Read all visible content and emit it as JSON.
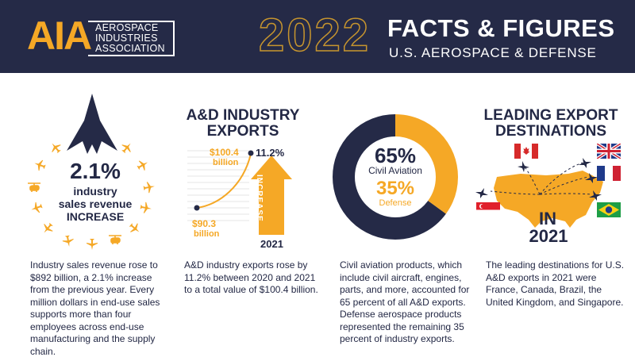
{
  "header": {
    "logo_mark": "AIA",
    "logo_lines": [
      "AEROSPACE",
      "INDUSTRIES",
      "ASSOCIATION"
    ],
    "year": "2022",
    "title": "FACTS & FIGURES",
    "subtitle": "U.S. AEROSPACE & DEFENSE"
  },
  "sales": {
    "percent": "2.1%",
    "line1": "industry",
    "line2": "sales revenue",
    "line3": "INCREASE",
    "paragraph": "Industry sales revenue rose to $892 billion, a 2.1% increase from the previous year. Every million dollars in end-use sales supports more than four employees across end-use manufacturing and the supply chain.",
    "icons": [
      "jet-silhouette",
      "airplane-icons-ring"
    ]
  },
  "exports": {
    "title_line1": "A&D INDUSTRY",
    "title_line2": "EXPORTS",
    "growth_label": "11.2%",
    "arrow_word": "INCREASE",
    "end_value": "$100.4",
    "end_unit": "billion",
    "start_value": "$90.3",
    "start_unit": "billion",
    "year": "2021",
    "paragraph": "A&D industry exports rose by 11.2% between 2020 and 2021 to a total value of $100.4 billion."
  },
  "composition": {
    "civil_percent": "65%",
    "civil_label": "Civil Aviation",
    "defense_percent": "35%",
    "defense_label": "Defense",
    "civil_share": 65,
    "defense_share": 35,
    "colors": {
      "civil": "#252a47",
      "defense": "#f5a826"
    },
    "paragraph": "Civil aviation products, which include civil aircraft, engines, parts, and more, accounted for 65 percent of all A&D exports. Defense aerospace products represented the remaining 35 percent of industry exports."
  },
  "destinations": {
    "title_line1": "LEADING EXPORT",
    "title_line2": "DESTINATIONS",
    "in_label": "IN",
    "year": "2021",
    "flags": [
      "Canada",
      "United Kingdom",
      "France",
      "Brazil",
      "Singapore"
    ],
    "paragraph": "The leading destinations for U.S. A&D exports in 2021 were France, Canada, Brazil, the United Kingdom, and Singapore."
  },
  "colors": {
    "navy": "#252a47",
    "orange": "#f5a826",
    "gold_outline": "#c7952e"
  }
}
